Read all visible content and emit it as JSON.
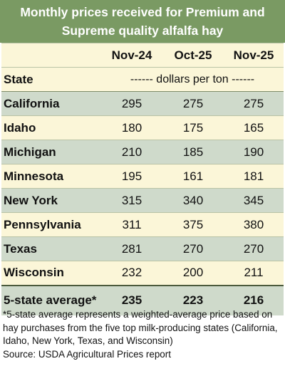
{
  "title_line1": "Monthly prices received for Premium and",
  "title_line2": "Supreme quality alfalfa hay",
  "chart_data": {
    "type": "table",
    "row_header": "State",
    "columns": [
      "Nov-24",
      "Oct-25",
      "Nov-25"
    ],
    "units": "------ dollars per ton ------",
    "rows": [
      {
        "state": "California",
        "values": [
          "295",
          "275",
          "275"
        ]
      },
      {
        "state": "Idaho",
        "values": [
          "180",
          "175",
          "165"
        ]
      },
      {
        "state": "Michigan",
        "values": [
          "210",
          "185",
          "190"
        ]
      },
      {
        "state": "Minnesota",
        "values": [
          "195",
          "161",
          "181"
        ]
      },
      {
        "state": "New York",
        "values": [
          "315",
          "340",
          "345"
        ]
      },
      {
        "state": "Pennsylvania",
        "values": [
          "311",
          "375",
          "380"
        ]
      },
      {
        "state": "Texas",
        "values": [
          "281",
          "270",
          "270"
        ]
      },
      {
        "state": "Wisconsin",
        "values": [
          "232",
          "200",
          "211"
        ]
      }
    ],
    "average": {
      "state": "5-state average*",
      "values": [
        "235",
        "223",
        "216"
      ]
    }
  },
  "footnote": "*5-state average represents  a weighted-average price based on hay purchases from the five top milk-producing states (California, Idaho, New York, Texas, and Wisconsin)",
  "source": "Source: USDA Agricultural Prices report",
  "colors": {
    "title_bg": "#7a9a63",
    "row_even": "#cfdacb",
    "row_odd": "#fbf6d8"
  }
}
